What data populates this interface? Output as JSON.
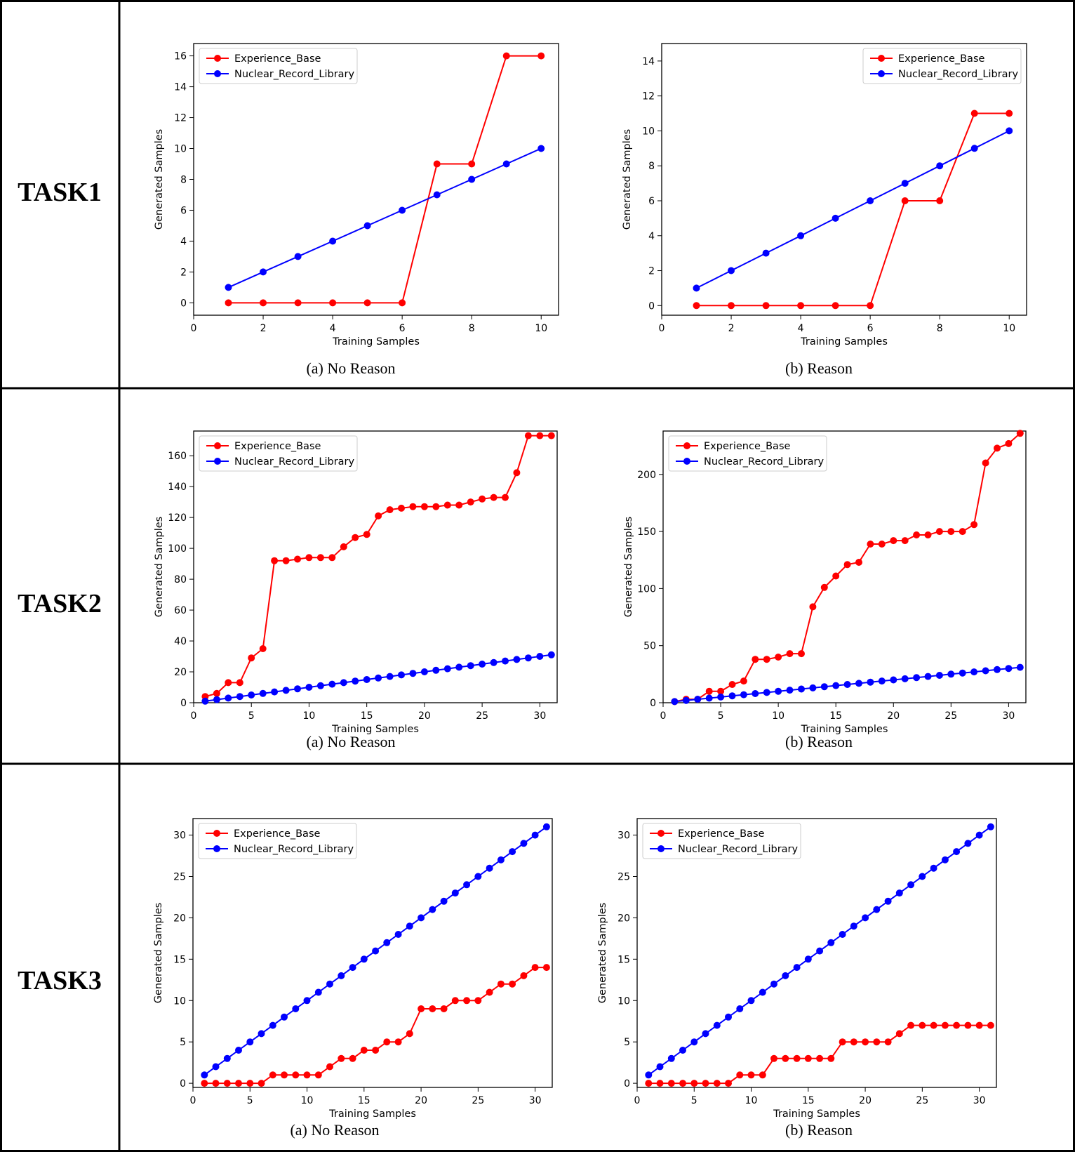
{
  "colors": {
    "experience": "#ff0000",
    "nuclear": "#0000ff",
    "grid_line": "#000000"
  },
  "rows": [
    {
      "label": "TASK1"
    },
    {
      "label": "TASK2"
    },
    {
      "label": "TASK3"
    }
  ],
  "chart_data": [
    {
      "type": "line",
      "task": "TASK1",
      "caption": "(a) No Reason",
      "xlabel": "Training Samples",
      "ylabel": "Generated Samples",
      "xlim": [
        0,
        10.5
      ],
      "ylim": [
        -0.8,
        16.8
      ],
      "xticks": [
        0,
        2,
        4,
        6,
        8,
        10
      ],
      "yticks": [
        0,
        2,
        4,
        6,
        8,
        10,
        12,
        14,
        16
      ],
      "legend": "top-left",
      "x": [
        1,
        2,
        3,
        4,
        5,
        6,
        7,
        8,
        9,
        10
      ],
      "series": [
        {
          "name": "Experience_Base",
          "color": "#ff0000",
          "values": [
            0,
            0,
            0,
            0,
            0,
            0,
            9,
            9,
            16,
            16
          ]
        },
        {
          "name": "Nuclear_Record_Library",
          "color": "#0000ff",
          "values": [
            1,
            2,
            3,
            4,
            5,
            6,
            7,
            8,
            9,
            10
          ]
        }
      ]
    },
    {
      "type": "line",
      "task": "TASK1",
      "caption": "(b) Reason",
      "xlabel": "Training Samples",
      "ylabel": "Generated Samples",
      "xlim": [
        0,
        10.5
      ],
      "ylim": [
        -0.55,
        15
      ],
      "xticks": [
        0,
        2,
        4,
        6,
        8,
        10
      ],
      "yticks": [
        0,
        2,
        4,
        6,
        8,
        10,
        12,
        14
      ],
      "legend": "top-right",
      "x": [
        1,
        2,
        3,
        4,
        5,
        6,
        7,
        8,
        9,
        10
      ],
      "series": [
        {
          "name": "Experience_Base",
          "color": "#ff0000",
          "values": [
            0,
            0,
            0,
            0,
            0,
            0,
            6,
            6,
            11,
            11
          ]
        },
        {
          "name": "Nuclear_Record_Library",
          "color": "#0000ff",
          "values": [
            1,
            2,
            3,
            4,
            5,
            6,
            7,
            8,
            9,
            10
          ]
        }
      ]
    },
    {
      "type": "line",
      "task": "TASK2",
      "caption": "(a) No Reason",
      "xlabel": "Training Samples",
      "ylabel": "Generated Samples",
      "xlim": [
        0,
        31.5
      ],
      "ylim": [
        0,
        176
      ],
      "xticks": [
        0,
        5,
        10,
        15,
        20,
        25,
        30
      ],
      "yticks": [
        0,
        20,
        40,
        60,
        80,
        100,
        120,
        140,
        160
      ],
      "legend": "top-left",
      "x": [
        1,
        2,
        3,
        4,
        5,
        6,
        7,
        8,
        9,
        10,
        11,
        12,
        13,
        14,
        15,
        16,
        17,
        18,
        19,
        20,
        21,
        22,
        23,
        24,
        25,
        26,
        27,
        28,
        29,
        30,
        31
      ],
      "series": [
        {
          "name": "Experience_Base",
          "color": "#ff0000",
          "values": [
            4,
            6,
            13,
            13,
            29,
            35,
            92,
            92,
            93,
            94,
            94,
            94,
            101,
            107,
            109,
            121,
            125,
            126,
            127,
            127,
            127,
            128,
            128,
            130,
            132,
            133,
            133,
            149,
            173,
            173,
            173
          ]
        },
        {
          "name": "Nuclear_Record_Library",
          "color": "#0000ff",
          "values": [
            1,
            2,
            3,
            4,
            5,
            6,
            7,
            8,
            9,
            10,
            11,
            12,
            13,
            14,
            15,
            16,
            17,
            18,
            19,
            20,
            21,
            22,
            23,
            24,
            25,
            26,
            27,
            28,
            29,
            30,
            31
          ]
        }
      ]
    },
    {
      "type": "line",
      "task": "TASK2",
      "caption": "(b) Reason",
      "xlabel": "Training Samples",
      "ylabel": "Generated Samples",
      "xlim": [
        0,
        31.5
      ],
      "ylim": [
        0,
        238
      ],
      "xticks": [
        0,
        5,
        10,
        15,
        20,
        25,
        30
      ],
      "yticks": [
        0,
        50,
        100,
        150,
        200
      ],
      "legend": "top-left",
      "x": [
        1,
        2,
        3,
        4,
        5,
        6,
        7,
        8,
        9,
        10,
        11,
        12,
        13,
        14,
        15,
        16,
        17,
        18,
        19,
        20,
        21,
        22,
        23,
        24,
        25,
        26,
        27,
        28,
        29,
        30,
        31
      ],
      "series": [
        {
          "name": "Experience_Base",
          "color": "#ff0000",
          "values": [
            1,
            3,
            3,
            10,
            10,
            16,
            19,
            38,
            38,
            40,
            43,
            43,
            84,
            101,
            111,
            121,
            123,
            139,
            139,
            142,
            142,
            147,
            147,
            150,
            150,
            150,
            156,
            210,
            223,
            227,
            236
          ]
        },
        {
          "name": "Nuclear_Record_Library",
          "color": "#0000ff",
          "values": [
            1,
            2,
            3,
            4,
            5,
            6,
            7,
            8,
            9,
            10,
            11,
            12,
            13,
            14,
            15,
            16,
            17,
            18,
            19,
            20,
            21,
            22,
            23,
            24,
            25,
            26,
            27,
            28,
            29,
            30,
            31
          ]
        }
      ]
    },
    {
      "type": "line",
      "task": "TASK3",
      "caption": "(a) No Reason",
      "xlabel": "Training Samples",
      "ylabel": "Generated Samples",
      "xlim": [
        0,
        31.5
      ],
      "ylim": [
        -0.5,
        32
      ],
      "xticks": [
        0,
        5,
        10,
        15,
        20,
        25,
        30
      ],
      "yticks": [
        0,
        5,
        10,
        15,
        20,
        25,
        30
      ],
      "legend": "top-left",
      "x": [
        1,
        2,
        3,
        4,
        5,
        6,
        7,
        8,
        9,
        10,
        11,
        12,
        13,
        14,
        15,
        16,
        17,
        18,
        19,
        20,
        21,
        22,
        23,
        24,
        25,
        26,
        27,
        28,
        29,
        30,
        31
      ],
      "series": [
        {
          "name": "Experience_Base",
          "color": "#ff0000",
          "values": [
            0,
            0,
            0,
            0,
            0,
            0,
            1,
            1,
            1,
            1,
            1,
            2,
            3,
            3,
            4,
            4,
            5,
            5,
            6,
            9,
            9,
            9,
            10,
            10,
            10,
            11,
            12,
            12,
            13,
            14,
            14
          ]
        },
        {
          "name": "Nuclear_Record_Library",
          "color": "#0000ff",
          "values": [
            1,
            2,
            3,
            4,
            5,
            6,
            7,
            8,
            9,
            10,
            11,
            12,
            13,
            14,
            15,
            16,
            17,
            18,
            19,
            20,
            21,
            22,
            23,
            24,
            25,
            26,
            27,
            28,
            29,
            30,
            31
          ]
        }
      ]
    },
    {
      "type": "line",
      "task": "TASK3",
      "caption": "(b) Reason",
      "xlabel": "Training Samples",
      "ylabel": "Generated Samples",
      "xlim": [
        0,
        31.5
      ],
      "ylim": [
        -0.5,
        32
      ],
      "xticks": [
        0,
        5,
        10,
        15,
        20,
        25,
        30
      ],
      "yticks": [
        0,
        5,
        10,
        15,
        20,
        25,
        30
      ],
      "legend": "top-left",
      "x": [
        1,
        2,
        3,
        4,
        5,
        6,
        7,
        8,
        9,
        10,
        11,
        12,
        13,
        14,
        15,
        16,
        17,
        18,
        19,
        20,
        21,
        22,
        23,
        24,
        25,
        26,
        27,
        28,
        29,
        30,
        31
      ],
      "series": [
        {
          "name": "Experience_Base",
          "color": "#ff0000",
          "values": [
            0,
            0,
            0,
            0,
            0,
            0,
            0,
            0,
            1,
            1,
            1,
            3,
            3,
            3,
            3,
            3,
            3,
            5,
            5,
            5,
            5,
            5,
            6,
            7,
            7,
            7,
            7,
            7,
            7,
            7,
            7
          ]
        },
        {
          "name": "Nuclear_Record_Library",
          "color": "#0000ff",
          "values": [
            1,
            2,
            3,
            4,
            5,
            6,
            7,
            8,
            9,
            10,
            11,
            12,
            13,
            14,
            15,
            16,
            17,
            18,
            19,
            20,
            21,
            22,
            23,
            24,
            25,
            26,
            27,
            28,
            29,
            30,
            31
          ]
        }
      ]
    }
  ]
}
